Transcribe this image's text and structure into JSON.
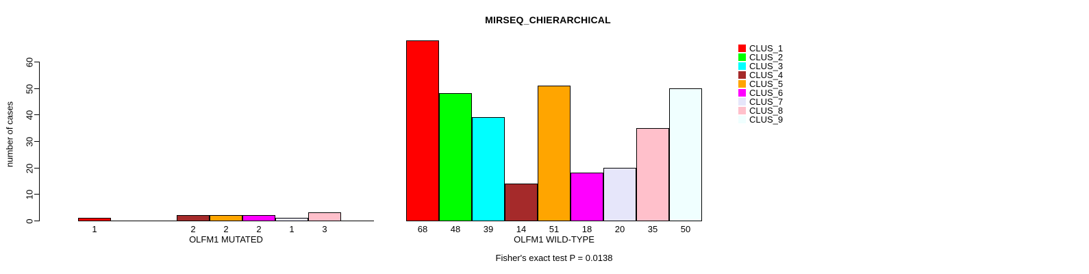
{
  "chart_data": {
    "type": "bar",
    "title": "MIRSEQ_CHIERARCHICAL",
    "ylabel": "number of cases",
    "xlabel": "",
    "ylim": [
      0,
      60
    ],
    "yticks": [
      0,
      10,
      20,
      30,
      40,
      50,
      60
    ],
    "grid": false,
    "legend_position": "right",
    "categories": [
      "CLUS_1",
      "CLUS_2",
      "CLUS_3",
      "CLUS_4",
      "CLUS_5",
      "CLUS_6",
      "CLUS_7",
      "CLUS_8",
      "CLUS_9"
    ],
    "colors": [
      "#FF0000",
      "#00FF00",
      "#00FFFF",
      "#A52A2A",
      "#FFA500",
      "#FF00FF",
      "#E6E6FA",
      "#FFC0CB",
      "#F0FFFF"
    ],
    "series": [
      {
        "name": "OLFM1 MUTATED",
        "values": [
          1,
          0,
          0,
          2,
          2,
          2,
          1,
          3,
          0
        ]
      },
      {
        "name": "OLFM1 WILD-TYPE",
        "values": [
          68,
          48,
          39,
          14,
          51,
          18,
          20,
          35,
          50
        ]
      }
    ],
    "bar_value_labels_note": "each nonzero bar is labeled underneath with its value",
    "annotation": "Fisher's exact test P = 0.0138"
  }
}
